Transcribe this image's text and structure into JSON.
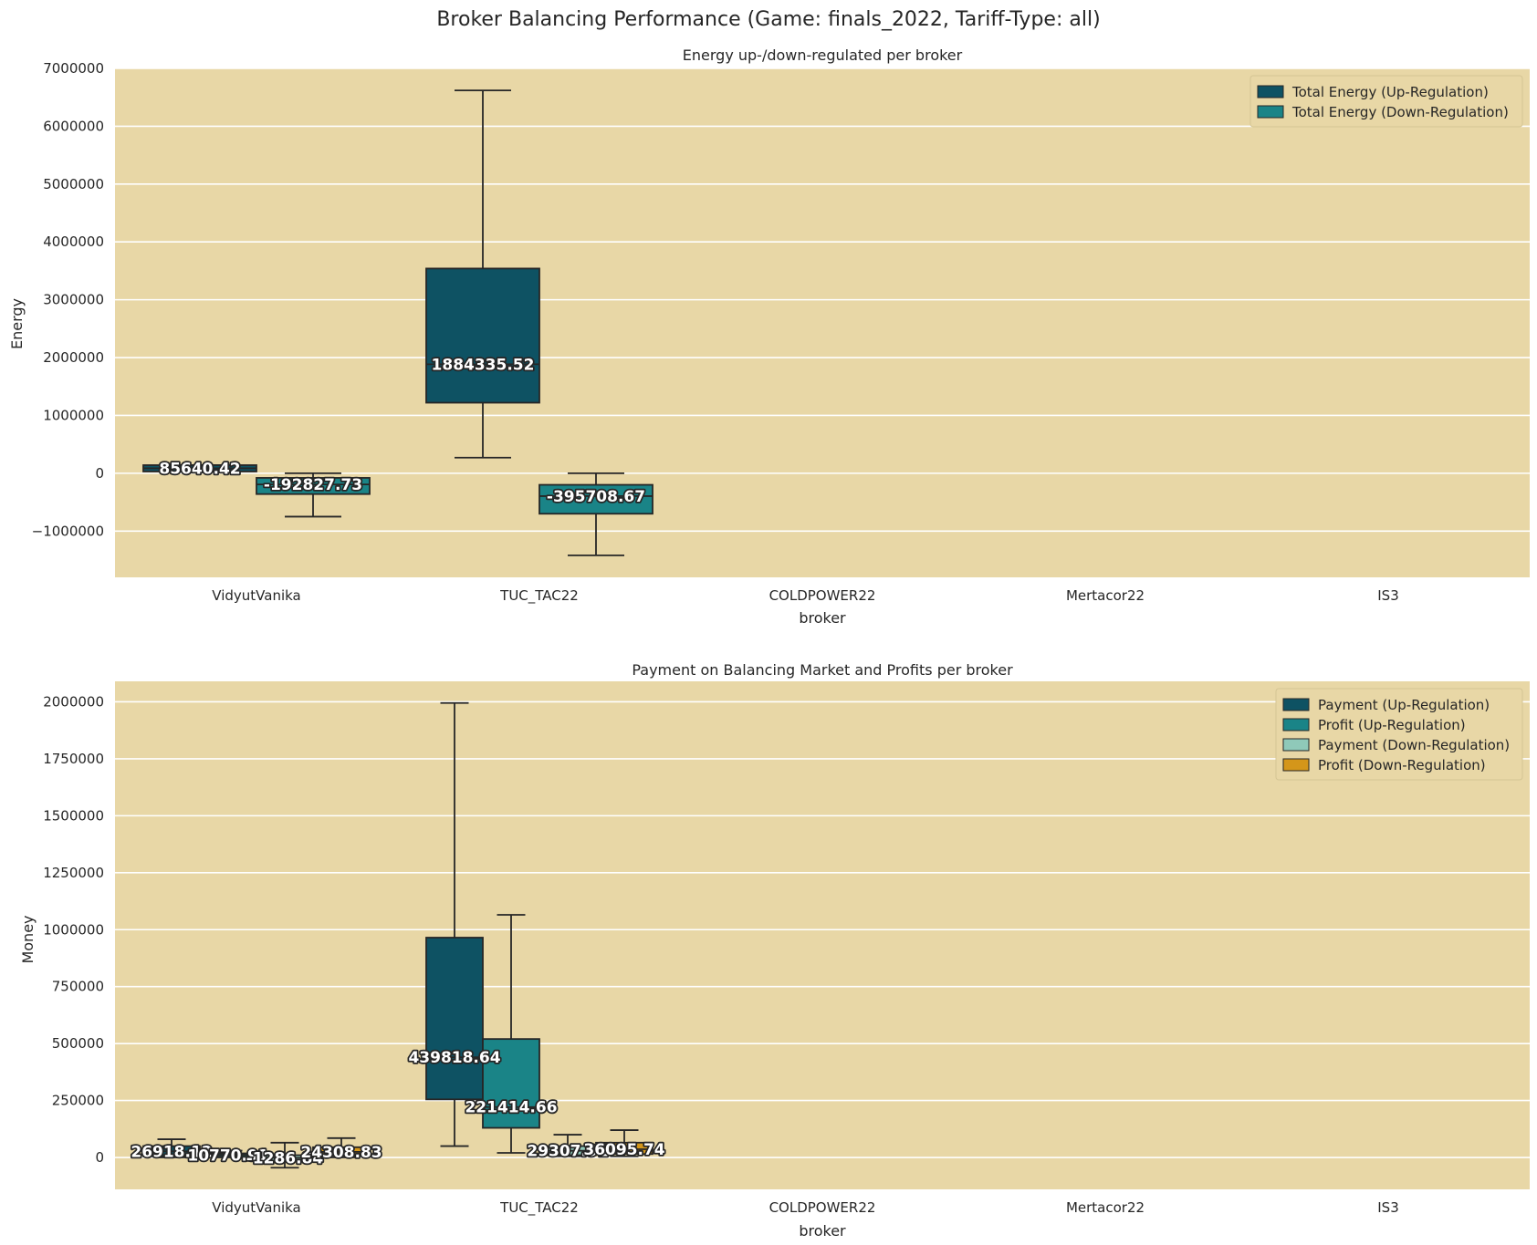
{
  "figure": {
    "suptitle": "Broker Balancing Performance (Game: finals_2022, Tariff-Type: all)",
    "plot_bg": "#e8d7a6",
    "grid_color": "#ffffff"
  },
  "chart_data": [
    {
      "type": "box",
      "title": "Energy up-/down-regulated per broker",
      "xlabel": "broker",
      "ylabel": "Energy",
      "ylim": [
        -1800000,
        7000000
      ],
      "yticks": [
        -1000000,
        0,
        1000000,
        2000000,
        3000000,
        4000000,
        5000000,
        6000000,
        7000000
      ],
      "ytick_labels": [
        "−1000000",
        "0",
        "1000000",
        "2000000",
        "3000000",
        "4000000",
        "5000000",
        "6000000",
        "7000000"
      ],
      "grid": true,
      "legend_position": "top-right",
      "categories": [
        "VidyutVanika",
        "TUC_TAC22",
        "COLDPOWER22",
        "Mertacor22",
        "IS3"
      ],
      "series": [
        {
          "name": "Total Energy (Up-Regulation)",
          "color": "#0e5263",
          "boxes": [
            {
              "category": "VidyutVanika",
              "whisker_low": 30000,
              "q1": 30000,
              "median": 85640.42,
              "q3": 140000,
              "whisker_high": 140000,
              "label": "85640.42"
            },
            {
              "category": "TUC_TAC22",
              "whisker_low": 270000,
              "q1": 1220000,
              "median": 1884335.52,
              "q3": 3540000,
              "whisker_high": 6620000,
              "label": "1884335.52"
            }
          ]
        },
        {
          "name": "Total Energy (Down-Regulation)",
          "color": "#1a8487",
          "boxes": [
            {
              "category": "VidyutVanika",
              "whisker_low": -750000,
              "q1": -360000,
              "median": -192827.73,
              "q3": -80000,
              "whisker_high": 0,
              "label": "-192827.73"
            },
            {
              "category": "TUC_TAC22",
              "whisker_low": -1420000,
              "q1": -700000,
              "median": -395708.67,
              "q3": -200000,
              "whisker_high": 0,
              "label": "-395708.67"
            }
          ]
        }
      ]
    },
    {
      "type": "box",
      "title": "Payment on Balancing Market and Profits per broker",
      "xlabel": "broker",
      "ylabel": "Money",
      "ylim": [
        -140000,
        2090000
      ],
      "yticks": [
        0,
        250000,
        500000,
        750000,
        1000000,
        1250000,
        1500000,
        1750000,
        2000000
      ],
      "ytick_labels": [
        "0",
        "250000",
        "500000",
        "750000",
        "1000000",
        "1250000",
        "1500000",
        "1750000",
        "2000000"
      ],
      "grid": true,
      "legend_position": "top-right",
      "categories": [
        "VidyutVanika",
        "TUC_TAC22",
        "COLDPOWER22",
        "Mertacor22",
        "IS3"
      ],
      "series": [
        {
          "name": "Payment (Up-Regulation)",
          "color": "#0e5263",
          "boxes": [
            {
              "category": "VidyutVanika",
              "whisker_low": 0,
              "q1": 5000,
              "median": 26918.12,
              "q3": 50000,
              "whisker_high": 80000,
              "label": "26918.12"
            },
            {
              "category": "TUC_TAC22",
              "whisker_low": 50000,
              "q1": 255000,
              "median": 439818.64,
              "q3": 965000,
              "whisker_high": 1995000,
              "label": "439818.64"
            }
          ]
        },
        {
          "name": "Profit (Up-Regulation)",
          "color": "#1a8487",
          "boxes": [
            {
              "category": "VidyutVanika",
              "whisker_low": 0,
              "q1": 3000,
              "median": 10770.91,
              "q3": 18000,
              "whisker_high": 30000,
              "label": "10770.91"
            },
            {
              "category": "TUC_TAC22",
              "whisker_low": 20000,
              "q1": 130000,
              "median": 221414.66,
              "q3": 520000,
              "whisker_high": 1065000,
              "label": "221414.66"
            }
          ]
        },
        {
          "name": "Payment (Down-Regulation)",
          "color": "#8fc9b9",
          "boxes": [
            {
              "category": "VidyutVanika",
              "whisker_low": -45000,
              "q1": -15000,
              "median": -1286.84,
              "q3": 10000,
              "whisker_high": 65000,
              "label": "-1286.84"
            },
            {
              "category": "TUC_TAC22",
              "whisker_low": 5000,
              "q1": 10000,
              "median": 29307.91,
              "q3": 50000,
              "whisker_high": 100000,
              "label": "29307.91"
            }
          ]
        },
        {
          "name": "Profit (Down-Regulation)",
          "color": "#d4961a",
          "boxes": [
            {
              "category": "VidyutVanika",
              "whisker_low": 0,
              "q1": 8000,
              "median": 24308.83,
              "q3": 45000,
              "whisker_high": 85000,
              "label": "24308.83"
            },
            {
              "category": "TUC_TAC22",
              "whisker_low": 5000,
              "q1": 15000,
              "median": 36095.74,
              "q3": 65000,
              "whisker_high": 120000,
              "label": "36095.74"
            }
          ]
        }
      ]
    }
  ]
}
